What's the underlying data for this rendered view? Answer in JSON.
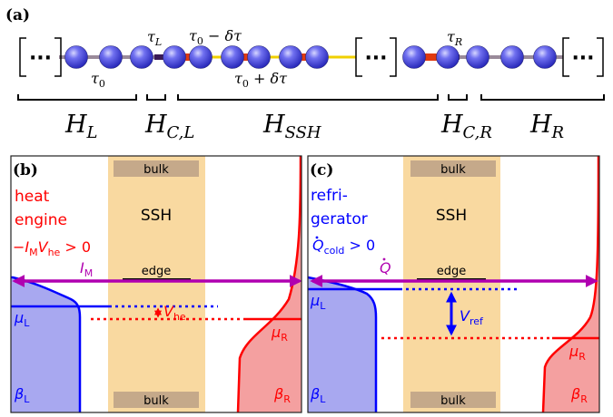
{
  "colors": {
    "bead": "#4a4ae0",
    "bead_highlight": "#c8c8ff",
    "link_gray": "#9a8a9a",
    "link_red": "#e03a10",
    "link_yellow": "#f0d000",
    "link_dark": "#3a1a55",
    "ssh_band": "#f9d9a0",
    "bulk_box": "#c5a98a",
    "left_blue": "#0000ff",
    "left_fill": "#a8a8f0",
    "right_red": "#ff0000",
    "right_fill": "#f4a0a0",
    "arrow_magenta": "#b000b0"
  },
  "panel_a": {
    "label": "(a)",
    "bracket_dots": "···",
    "tau0": "τ",
    "tau0_sub": "0",
    "tauL": "τ",
    "tauL_sub": "L",
    "tau_minus": "τ",
    "tau_minus_sub": "0",
    "tau_minus_rest": " − δτ",
    "tau_plus": "τ",
    "tau_plus_sub": "0",
    "tau_plus_rest": " + δτ",
    "tauR": "τ",
    "tauR_sub": "R",
    "HL": "H",
    "HL_sub": "L",
    "HCL": "H",
    "HCL_sub": "C,L",
    "HSSH": "H",
    "HSSH_sub": "SSH",
    "HCR": "H",
    "HCR_sub": "C,R",
    "HR": "H",
    "HR_sub": "R"
  },
  "panel_b": {
    "label": "(b)",
    "bulk_top": "bulk",
    "bulk_bottom": "bulk",
    "ssh": "SSH",
    "edge": "edge",
    "title_line1": "heat",
    "title_line2": "engine",
    "condition_pre": "−I",
    "condition_sub1": "M",
    "condition_mid": "V",
    "condition_sub2": "he",
    "condition_post": " > 0",
    "current": "I",
    "current_sub": "M",
    "voltage": "V",
    "voltage_sub": "he",
    "muL": "μ",
    "muL_sub": "L",
    "muR": "μ",
    "muR_sub": "R",
    "betaL": "β",
    "betaL_sub": "L",
    "betaR": "β",
    "betaR_sub": "R"
  },
  "panel_c": {
    "label": "(c)",
    "bulk_top": "bulk",
    "bulk_bottom": "bulk",
    "ssh": "SSH",
    "edge": "edge",
    "title_line1": "refri-",
    "title_line2": "gerator",
    "condition_pre": "Q",
    "condition_sub": "cold",
    "condition_post": " > 0",
    "current": "Q",
    "voltage": "V",
    "voltage_sub": "ref",
    "muL": "μ",
    "muL_sub": "L",
    "muR": "μ",
    "muR_sub": "R",
    "betaL": "β",
    "betaL_sub": "L",
    "betaR": "β",
    "betaR_sub": "R"
  }
}
